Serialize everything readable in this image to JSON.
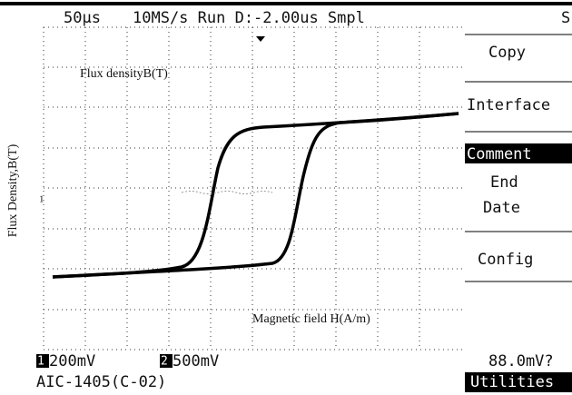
{
  "header": {
    "timebase": "50µs",
    "status": "10MS/s Run D:-2.00us Smpl",
    "right": "S"
  },
  "axis_label": "Flux Density,B(T)",
  "annotations": {
    "top": "Flux densityB(T)",
    "bottom": "Magnetic field H(A/m)",
    "marker": "1"
  },
  "menu": {
    "items": [
      "Copy",
      "Interface",
      "Comment",
      "End",
      "Date",
      "Config"
    ]
  },
  "footer": {
    "ch1_id": "1",
    "ch1_scale": "200mV",
    "ch2_id": "2",
    "ch2_scale": "500mV",
    "model": "AIC-1405(C-02)",
    "measurement": "88.0mV?",
    "menu_title": "Utilities"
  }
}
